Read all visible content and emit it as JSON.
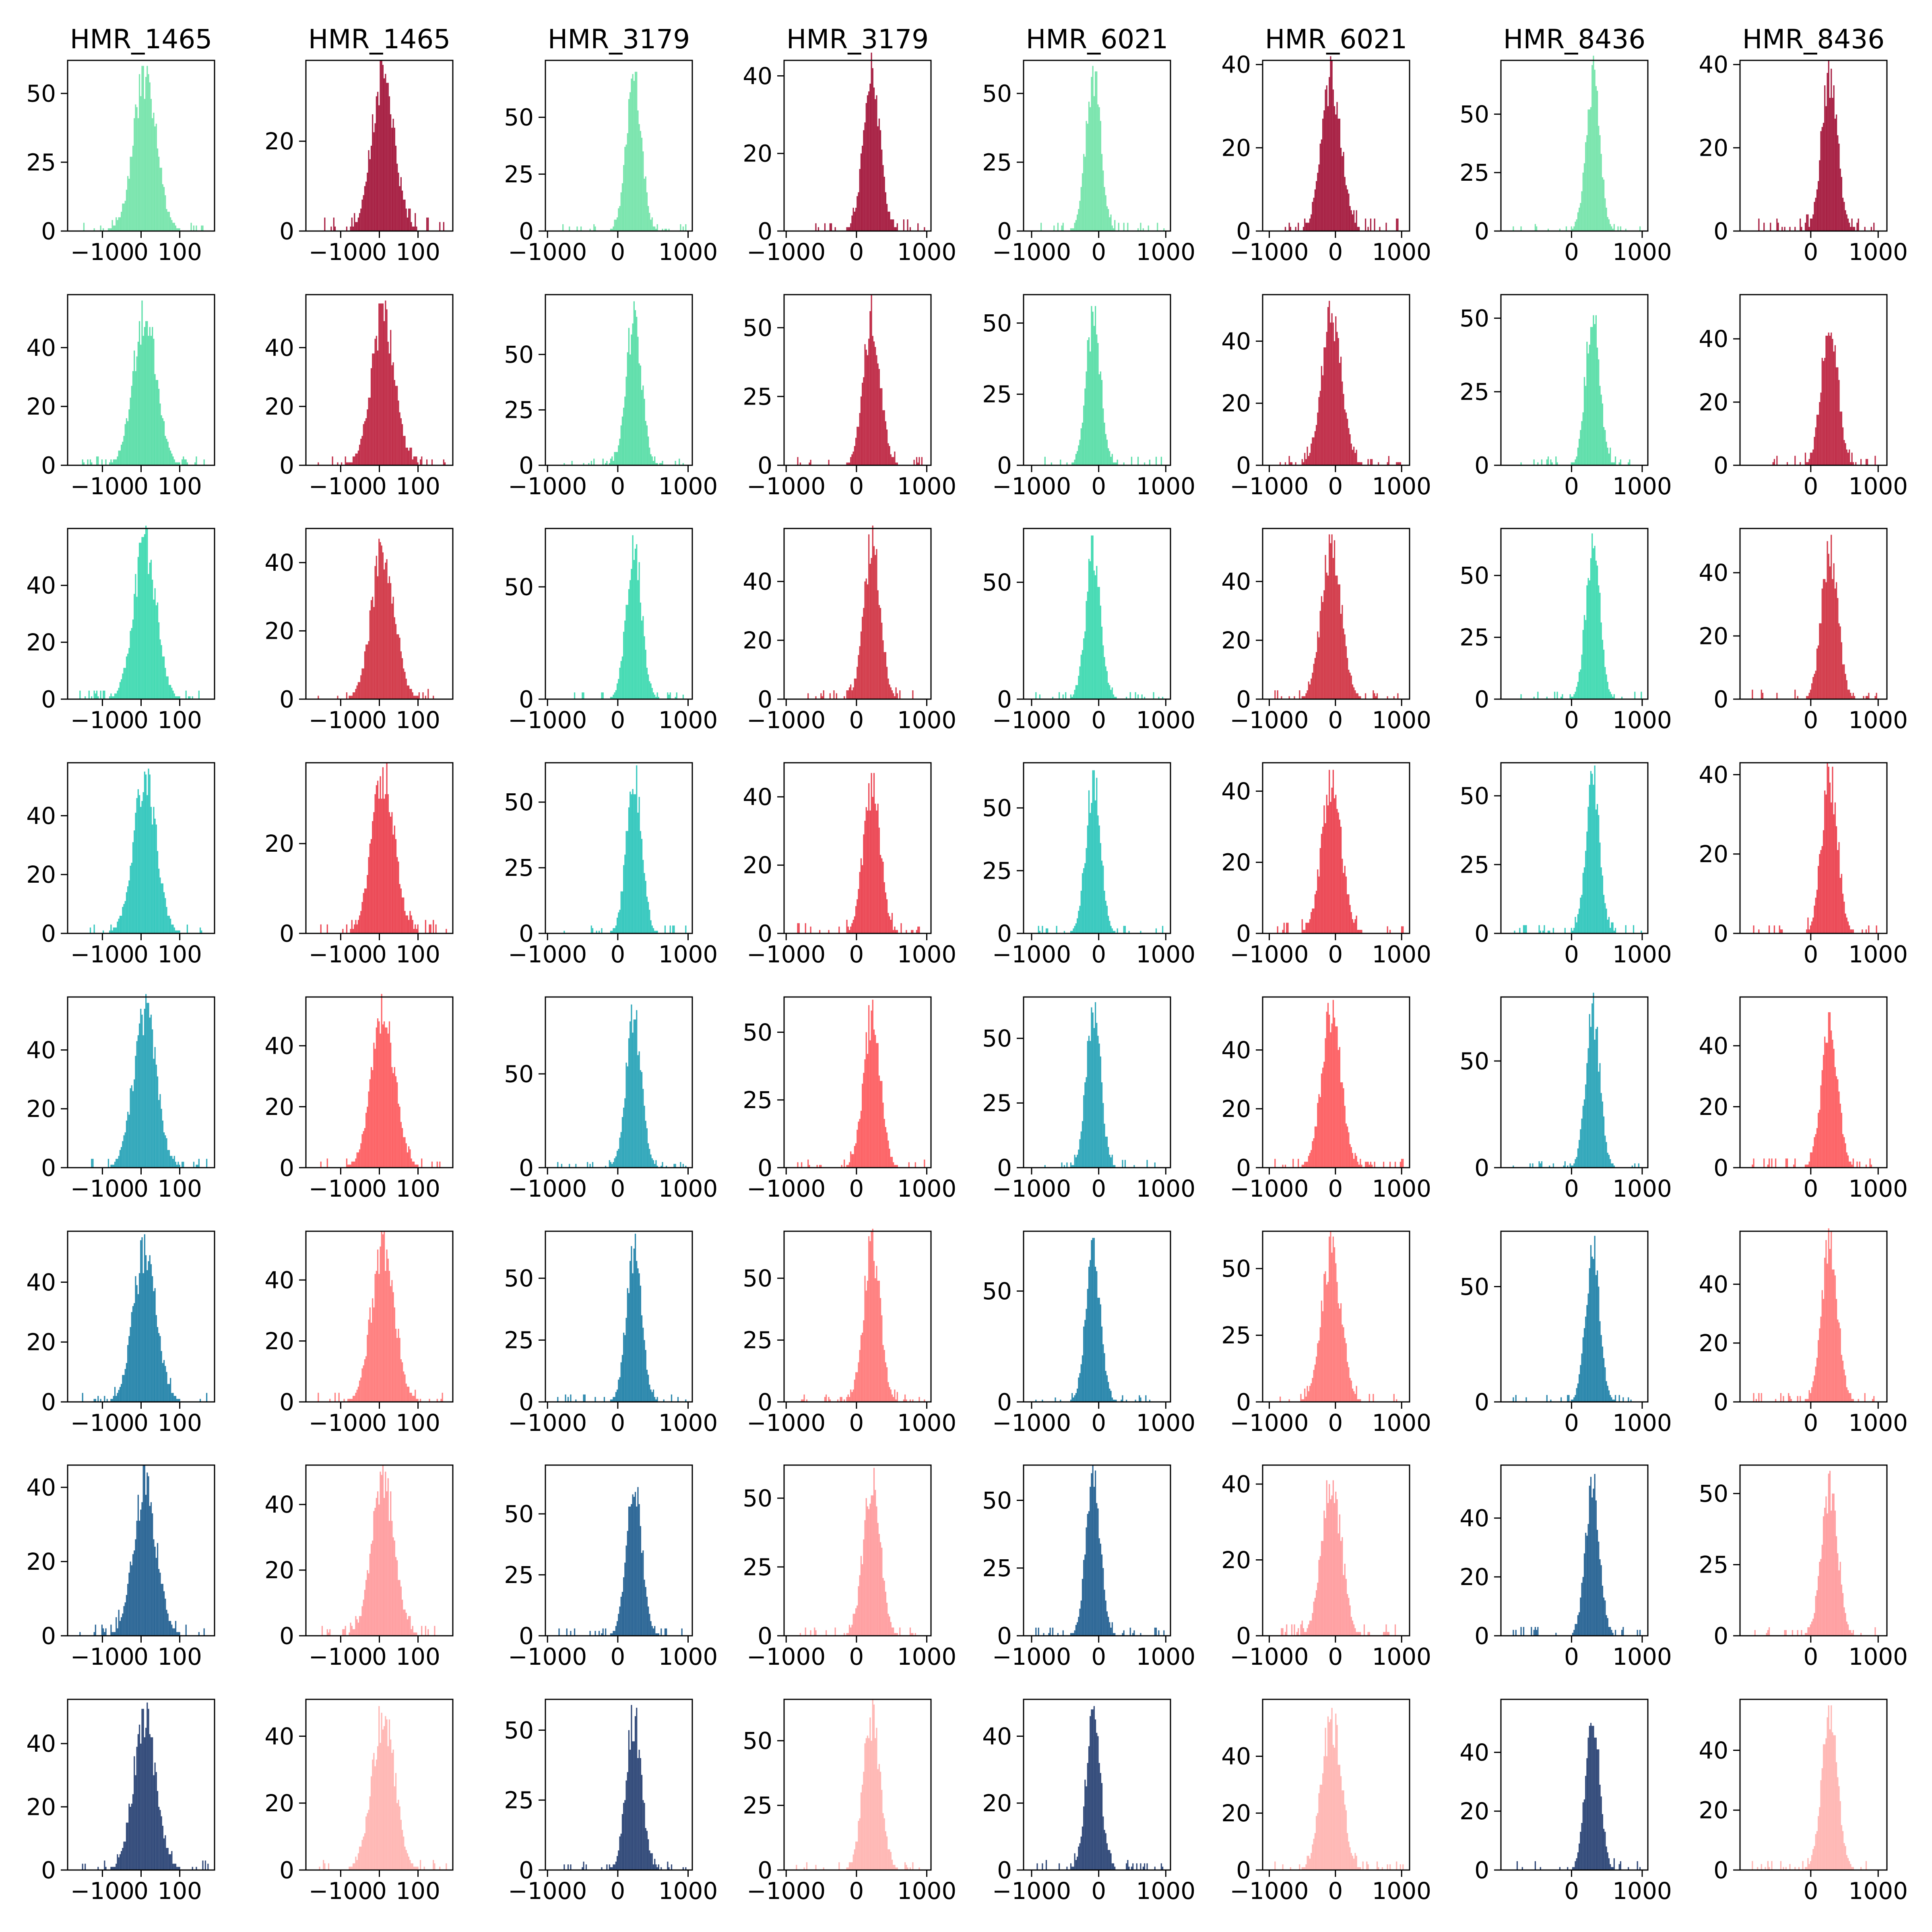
{
  "chart_data": {
    "type": "bar",
    "layout": {
      "rows": 8,
      "cols": 8
    },
    "column_titles": [
      "HMR_1465",
      "HMR_1465",
      "HMR_3179",
      "HMR_3179",
      "HMR_6021",
      "HMR_6021",
      "HMR_8436",
      "HMR_8436"
    ],
    "columns": [
      {
        "title": "HMR_1465",
        "xlim": [
          -190,
          190
        ],
        "xticks": [
          -100,
          0,
          100
        ],
        "xtick_labels": [
          "−100",
          "0",
          "100"
        ],
        "center": 10,
        "sd": 30
      },
      {
        "title": "HMR_1465",
        "xlim": [
          -190,
          190
        ],
        "xticks": [
          -100,
          0,
          100
        ],
        "xtick_labels": [
          "−100",
          "0",
          "100"
        ],
        "center": 10,
        "sd": 30
      },
      {
        "title": "HMR_3179",
        "xlim": [
          -1030,
          1060
        ],
        "xticks": [
          -1000,
          0,
          1000
        ],
        "xtick_labels": [
          "−1000",
          "0",
          "1000"
        ],
        "center": 230,
        "sd": 110
      },
      {
        "title": "HMR_3179",
        "xlim": [
          -1030,
          1060
        ],
        "xticks": [
          -1000,
          0,
          1000
        ],
        "xtick_labels": [
          "−1000",
          "0",
          "1000"
        ],
        "center": 220,
        "sd": 120
      },
      {
        "title": "HMR_6021",
        "xlim": [
          -1120,
          1070
        ],
        "xticks": [
          -1000,
          0,
          1000
        ],
        "xtick_labels": [
          "−1000",
          "0",
          "1000"
        ],
        "center": -80,
        "sd": 110
      },
      {
        "title": "HMR_6021",
        "xlim": [
          -1100,
          1120
        ],
        "xticks": [
          -1000,
          0,
          1000
        ],
        "xtick_labels": [
          "−1000",
          "0",
          "1000"
        ],
        "center": -60,
        "sd": 150
      },
      {
        "title": "HMR_8436",
        "xlim": [
          -1000,
          1080
        ],
        "xticks": [
          0,
          1000
        ],
        "xtick_labels": [
          "0",
          "1000"
        ],
        "center": 300,
        "sd": 100
      },
      {
        "title": "HMR_8436",
        "xlim": [
          -1050,
          1130
        ],
        "xticks": [
          0,
          1000
        ],
        "xtick_labels": [
          "0",
          "1000"
        ],
        "center": 280,
        "sd": 120
      }
    ],
    "rows": [
      {
        "colors": [
          "#7be5ae",
          "#a82245"
        ],
        "ylim": [
          [
            0,
            62
          ],
          [
            0,
            38
          ],
          [
            0,
            75
          ],
          [
            0,
            44
          ],
          [
            0,
            62
          ],
          [
            0,
            41
          ],
          [
            0,
            73
          ],
          [
            0,
            41
          ]
        ],
        "peaks": [
          60,
          37,
          70,
          43,
          61,
          39,
          70,
          39
        ]
      },
      {
        "colors": [
          "#60dfab",
          "#c1304b"
        ],
        "ylim": [
          [
            0,
            58
          ],
          [
            0,
            58
          ],
          [
            0,
            77
          ],
          [
            0,
            62
          ],
          [
            0,
            60
          ],
          [
            0,
            55
          ],
          [
            0,
            58
          ],
          [
            0,
            54
          ]
        ],
        "peaks": [
          55,
          55,
          72,
          59,
          56,
          53,
          56,
          51
        ]
      },
      {
        "colors": [
          "#47dbb4",
          "#d33e4d"
        ],
        "ylim": [
          [
            0,
            60
          ],
          [
            0,
            50
          ],
          [
            0,
            76
          ],
          [
            0,
            58
          ],
          [
            0,
            73
          ],
          [
            0,
            58
          ],
          [
            0,
            69
          ],
          [
            0,
            54
          ]
        ],
        "peaks": [
          57,
          47,
          72,
          56,
          70,
          56,
          67,
          52
        ]
      },
      {
        "colors": [
          "#39c9bf",
          "#ec4a57"
        ],
        "ylim": [
          [
            0,
            58
          ],
          [
            0,
            38
          ],
          [
            0,
            65
          ],
          [
            0,
            50
          ],
          [
            0,
            68
          ],
          [
            0,
            48
          ],
          [
            0,
            62
          ],
          [
            0,
            43
          ]
        ],
        "peaks": [
          56,
          37,
          63,
          47,
          65,
          45,
          59,
          42
        ]
      },
      {
        "colors": [
          "#33a8bb",
          "#fd6467"
        ],
        "ylim": [
          [
            0,
            58
          ],
          [
            0,
            56
          ],
          [
            0,
            91
          ],
          [
            0,
            63
          ],
          [
            0,
            66
          ],
          [
            0,
            58
          ],
          [
            0,
            80
          ],
          [
            0,
            56
          ]
        ],
        "peaks": [
          56,
          54,
          87,
          60,
          64,
          55,
          77,
          53
        ]
      },
      {
        "colors": [
          "#2c88ad",
          "#ff8080"
        ],
        "ylim": [
          [
            0,
            57
          ],
          [
            0,
            56
          ],
          [
            0,
            69
          ],
          [
            0,
            69
          ],
          [
            0,
            77
          ],
          [
            0,
            64
          ],
          [
            0,
            74
          ],
          [
            0,
            58
          ]
        ],
        "peaks": [
          55,
          55,
          64,
          67,
          74,
          60,
          72,
          56
        ]
      },
      {
        "colors": [
          "#2e6897",
          "#ffa0a2"
        ],
        "ylim": [
          [
            0,
            46
          ],
          [
            0,
            52
          ],
          [
            0,
            70
          ],
          [
            0,
            62
          ],
          [
            0,
            63
          ],
          [
            0,
            45
          ],
          [
            0,
            58
          ],
          [
            0,
            60
          ]
        ],
        "peaks": [
          44,
          50,
          67,
          61,
          60,
          44,
          55,
          57
        ]
      },
      {
        "colors": [
          "#344c7b",
          "#ffb8b5"
        ],
        "ylim": [
          [
            0,
            54
          ],
          [
            0,
            51
          ],
          [
            0,
            61
          ],
          [
            0,
            66
          ],
          [
            0,
            51
          ],
          [
            0,
            60
          ],
          [
            0,
            58
          ],
          [
            0,
            57
          ]
        ],
        "peaks": [
          51,
          49,
          58,
          64,
          48,
          57,
          56,
          55
        ]
      }
    ],
    "yticks": [
      [
        [
          0,
          25,
          50
        ],
        [
          0,
          20
        ],
        [
          0,
          25,
          50
        ],
        [
          0,
          20,
          40
        ],
        [
          0,
          25,
          50
        ],
        [
          0,
          20,
          40
        ],
        [
          0,
          25,
          50
        ],
        [
          0,
          20,
          40
        ]
      ],
      [
        [
          0,
          20,
          40
        ],
        [
          0,
          20,
          40
        ],
        [
          0,
          25,
          50
        ],
        [
          0,
          25,
          50
        ],
        [
          0,
          25,
          50
        ],
        [
          0,
          20,
          40
        ],
        [
          0,
          25,
          50
        ],
        [
          0,
          20,
          40
        ]
      ],
      [
        [
          0,
          20,
          40
        ],
        [
          0,
          20,
          40
        ],
        [
          0,
          50
        ],
        [
          0,
          20,
          40
        ],
        [
          0,
          50
        ],
        [
          0,
          20,
          40
        ],
        [
          0,
          25,
          50
        ],
        [
          0,
          20,
          40
        ]
      ],
      [
        [
          0,
          20,
          40
        ],
        [
          0,
          20
        ],
        [
          0,
          25,
          50
        ],
        [
          0,
          20,
          40
        ],
        [
          0,
          25,
          50
        ],
        [
          0,
          20,
          40
        ],
        [
          0,
          25,
          50
        ],
        [
          0,
          20,
          40
        ]
      ],
      [
        [
          0,
          20,
          40
        ],
        [
          0,
          20,
          40
        ],
        [
          0,
          50
        ],
        [
          0,
          25,
          50
        ],
        [
          0,
          25,
          50
        ],
        [
          0,
          20,
          40
        ],
        [
          0,
          50
        ],
        [
          0,
          20,
          40
        ]
      ],
      [
        [
          0,
          20,
          40
        ],
        [
          0,
          20,
          40
        ],
        [
          0,
          25,
          50
        ],
        [
          0,
          25,
          50
        ],
        [
          0,
          50
        ],
        [
          0,
          25,
          50
        ],
        [
          0,
          50
        ],
        [
          0,
          20,
          40
        ]
      ],
      [
        [
          0,
          20,
          40
        ],
        [
          0,
          20,
          40
        ],
        [
          0,
          25,
          50
        ],
        [
          0,
          25,
          50
        ],
        [
          0,
          25,
          50
        ],
        [
          0,
          20,
          40
        ],
        [
          0,
          20,
          40
        ],
        [
          0,
          25,
          50
        ]
      ],
      [
        [
          0,
          20,
          40
        ],
        [
          0,
          20,
          40
        ],
        [
          0,
          25,
          50
        ],
        [
          0,
          25,
          50
        ],
        [
          0,
          20,
          40
        ],
        [
          0,
          20,
          40
        ],
        [
          0,
          20,
          40
        ],
        [
          0,
          20,
          40
        ]
      ]
    ],
    "bins_per_histogram": 100,
    "grid": false,
    "legend": "none"
  }
}
